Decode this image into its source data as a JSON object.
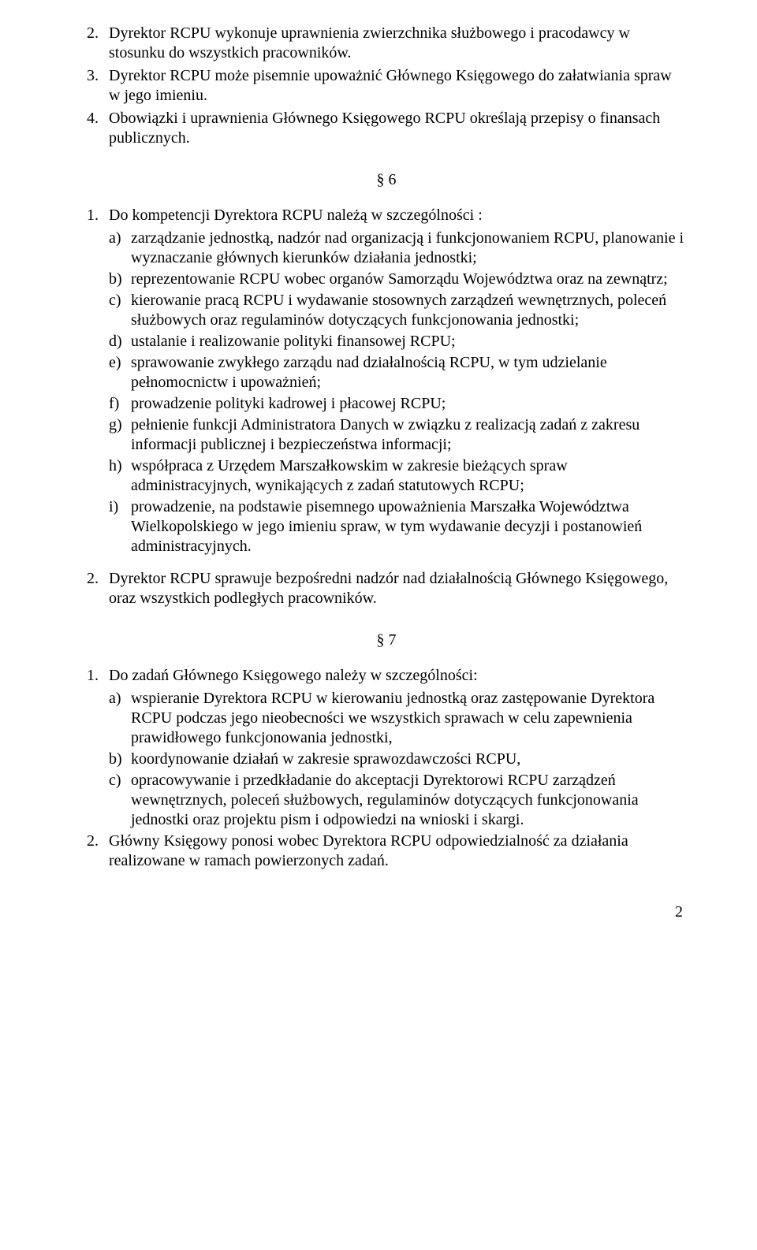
{
  "top": {
    "items": [
      {
        "n": "2.",
        "t": "Dyrektor RCPU wykonuje uprawnienia zwierzchnika służbowego i pracodawcy w stosunku do wszystkich pracowników."
      },
      {
        "n": "3.",
        "t": "Dyrektor RCPU może pisemnie upoważnić Głównego Księgowego do załatwiania spraw w jego imieniu."
      },
      {
        "n": "4.",
        "t": "Obowiązki i uprawnienia Głównego Księgowego RCPU określają przepisy o finansach publicznych."
      }
    ]
  },
  "sec6": {
    "mark": "§ 6",
    "item1": {
      "n": "1.",
      "t": "Do kompetencji Dyrektora RCPU należą w szczególności :"
    },
    "subs": [
      {
        "l": "a)",
        "t": "zarządzanie jednostką, nadzór nad organizacją i funkcjonowaniem RCPU, planowanie i wyznaczanie głównych kierunków działania jednostki;"
      },
      {
        "l": "b)",
        "t": "reprezentowanie RCPU wobec organów Samorządu Województwa oraz na zewnątrz;"
      },
      {
        "l": "c)",
        "t": "kierowanie pracą RCPU i wydawanie stosownych zarządzeń wewnętrznych, poleceń służbowych oraz regulaminów dotyczących funkcjonowania jednostki;"
      },
      {
        "l": "d)",
        "t": "ustalanie i realizowanie polityki finansowej RCPU;"
      },
      {
        "l": "e)",
        "t": "sprawowanie zwykłego zarządu nad działalnością RCPU, w tym udzielanie pełnomocnictw i upoważnień;"
      },
      {
        "l": "f)",
        "t": "prowadzenie polityki kadrowej i płacowej RCPU;"
      },
      {
        "l": "g)",
        "t": "pełnienie funkcji Administratora Danych w związku z realizacją zadań z zakresu informacji publicznej i bezpieczeństwa informacji;"
      },
      {
        "l": "h)",
        "t": "współpraca z Urzędem Marszałkowskim w zakresie bieżących spraw administracyjnych, wynikających z zadań statutowych RCPU;"
      },
      {
        "l": "i)",
        "t": "prowadzenie, na podstawie pisemnego upoważnienia Marszałka Województwa Wielkopolskiego w jego imieniu spraw, w tym wydawanie decyzji i postanowień administracyjnych."
      }
    ],
    "item2": {
      "n": "2.",
      "t": "Dyrektor RCPU sprawuje bezpośredni nadzór nad działalnością Głównego Księgowego, oraz wszystkich podległych pracowników."
    }
  },
  "sec7": {
    "mark": "§ 7",
    "item1": {
      "n": "1.",
      "t": "Do zadań Głównego Księgowego należy w szczególności:"
    },
    "subs": [
      {
        "l": "a)",
        "t": "wspieranie Dyrektora RCPU w kierowaniu jednostką oraz zastępowanie Dyrektora RCPU podczas jego nieobecności we wszystkich sprawach w celu zapewnienia prawidłowego funkcjonowania jednostki,"
      },
      {
        "l": "b)",
        "t": "koordynowanie działań w zakresie sprawozdawczości RCPU,"
      },
      {
        "l": "c)",
        "t": "opracowywanie i przedkładanie do akceptacji Dyrektorowi RCPU zarządzeń wewnętrznych, poleceń służbowych, regulaminów dotyczących funkcjonowania jednostki oraz projektu pism i odpowiedzi na wnioski i skargi."
      }
    ],
    "item2": {
      "n": "2.",
      "t": "Główny Księgowy ponosi wobec Dyrektora RCPU odpowiedzialność za działania realizowane w ramach powierzonych zadań."
    }
  },
  "page": "2"
}
